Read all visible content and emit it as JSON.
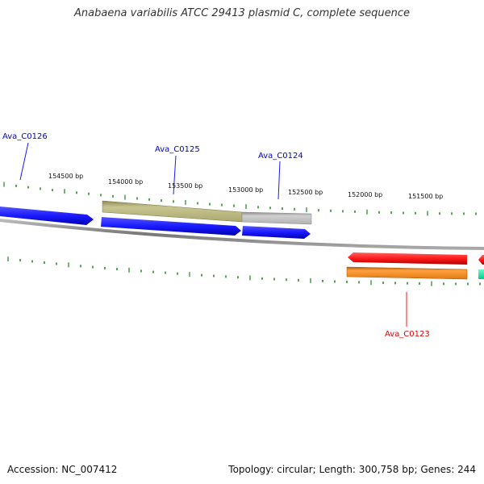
{
  "title": "Anabaena variabilis ATCC 29413 plasmid C, complete sequence",
  "footer": {
    "accession": "Accession: NC_007412",
    "summary": "Topology: circular; Length: 300,758 bp; Genes: 244"
  },
  "colors": {
    "background": "#ffffff",
    "backbone": "#8a8a8a",
    "ticks": "#2e8b2e",
    "cds_forward": "#1a1aff",
    "cds_reverse": "#ff1a1a",
    "olive_feature": "#c2bf80",
    "gray_feature": "#c2c2c2",
    "orange_feature": "#ff8c1a",
    "teal_feature": "#33ffaa",
    "label_blue": "#0000cc",
    "label_red": "#dd0000"
  },
  "scale_labels": [
    "154500 bp",
    "154000 bp",
    "153500 bp",
    "153000 bp",
    "152500 bp",
    "152000 bp",
    "151500 bp"
  ],
  "gene_labels": [
    {
      "text": "Ava_C0126",
      "strand": "forward"
    },
    {
      "text": "Ava_C0125",
      "strand": "forward"
    },
    {
      "text": "Ava_C0124",
      "strand": "forward"
    },
    {
      "text": "Ava_C0123",
      "strand": "reverse"
    }
  ]
}
